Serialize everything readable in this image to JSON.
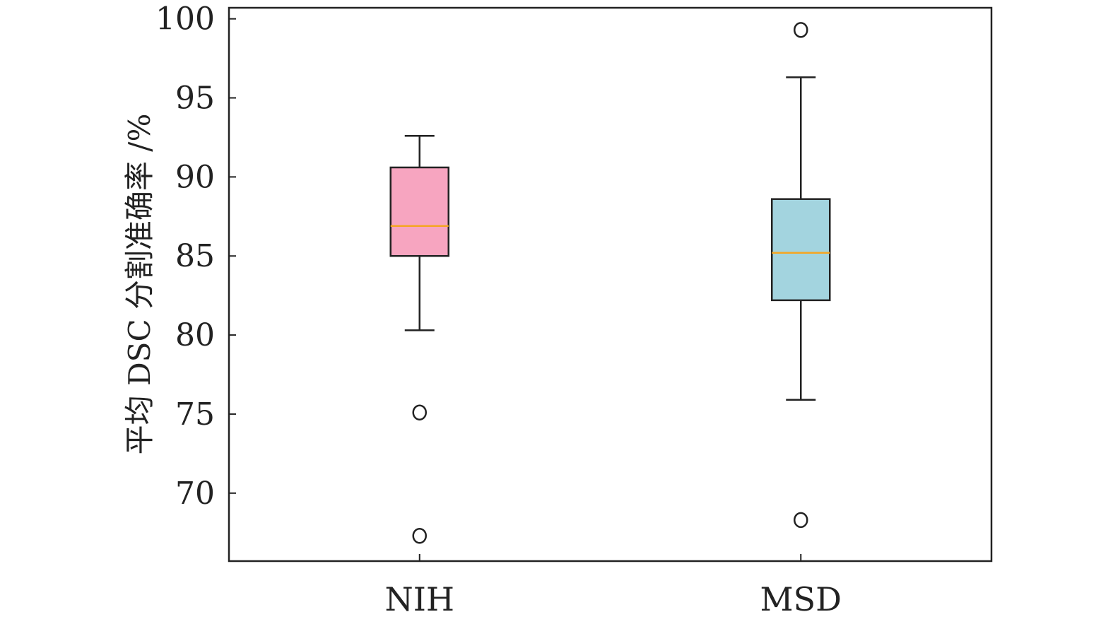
{
  "chart_data": {
    "type": "box",
    "title": "",
    "xlabel": "",
    "ylabel": "平均 DSC 分割准确率 /%",
    "ylim": [
      65.7,
      100.7
    ],
    "yticks": [
      70,
      75,
      80,
      85,
      90,
      95,
      100
    ],
    "grid": false,
    "categories": [
      "NIH",
      "MSD"
    ],
    "boxes": [
      {
        "category": "NIH",
        "whisker_low": 80.3,
        "q1": 85.0,
        "median": 86.9,
        "q3": 90.6,
        "whisker_high": 92.6,
        "outliers": [
          75.1,
          67.3
        ],
        "fill": "#f7a5c0"
      },
      {
        "category": "MSD",
        "whisker_low": 75.9,
        "q1": 82.2,
        "median": 85.2,
        "q3": 88.6,
        "whisker_high": 96.3,
        "outliers": [
          99.3,
          68.3
        ],
        "fill": "#a3d4df"
      }
    ],
    "colors": {
      "median": "#f5a623",
      "stroke": "#222222"
    }
  }
}
